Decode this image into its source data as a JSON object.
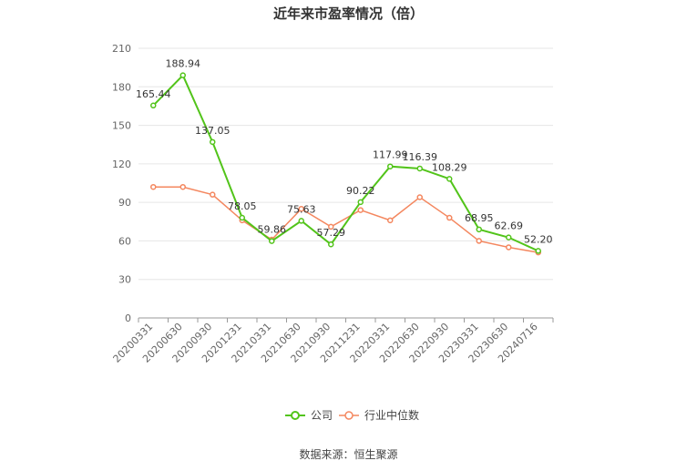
{
  "chart_data": {
    "type": "line",
    "title": "近年来市盈率情况（倍）",
    "categories": [
      "20200331",
      "20200630",
      "20200930",
      "20201231",
      "20210331",
      "20210630",
      "20210930",
      "20211231",
      "20220331",
      "20220630",
      "20220930",
      "20230331",
      "20230630",
      "20240716"
    ],
    "series": [
      {
        "name": "公司",
        "color": "#52c41a",
        "values": [
          165.44,
          188.94,
          137.05,
          78.05,
          59.86,
          75.63,
          57.29,
          90.22,
          117.99,
          116.39,
          108.29,
          68.95,
          62.69,
          52.2
        ],
        "labels": [
          "165.44",
          "188.94",
          "137.05",
          "78.05",
          "59.86",
          "75.63",
          "57.29",
          "90.22",
          "117.99",
          "116.39",
          "108.29",
          "68.95",
          "62.69",
          "52.20"
        ]
      },
      {
        "name": "行业中位数",
        "color": "#f4875f",
        "values": [
          102,
          102,
          96,
          76,
          61,
          85,
          71,
          84,
          76,
          94,
          78,
          60,
          55,
          51
        ]
      }
    ],
    "ylim": [
      0,
      210
    ],
    "yticks": [
      "0",
      "30",
      "60",
      "90",
      "120",
      "150",
      "180",
      "210"
    ],
    "grid": true,
    "legend_position": "bottom-center",
    "source": "数据来源：恒生聚源"
  }
}
